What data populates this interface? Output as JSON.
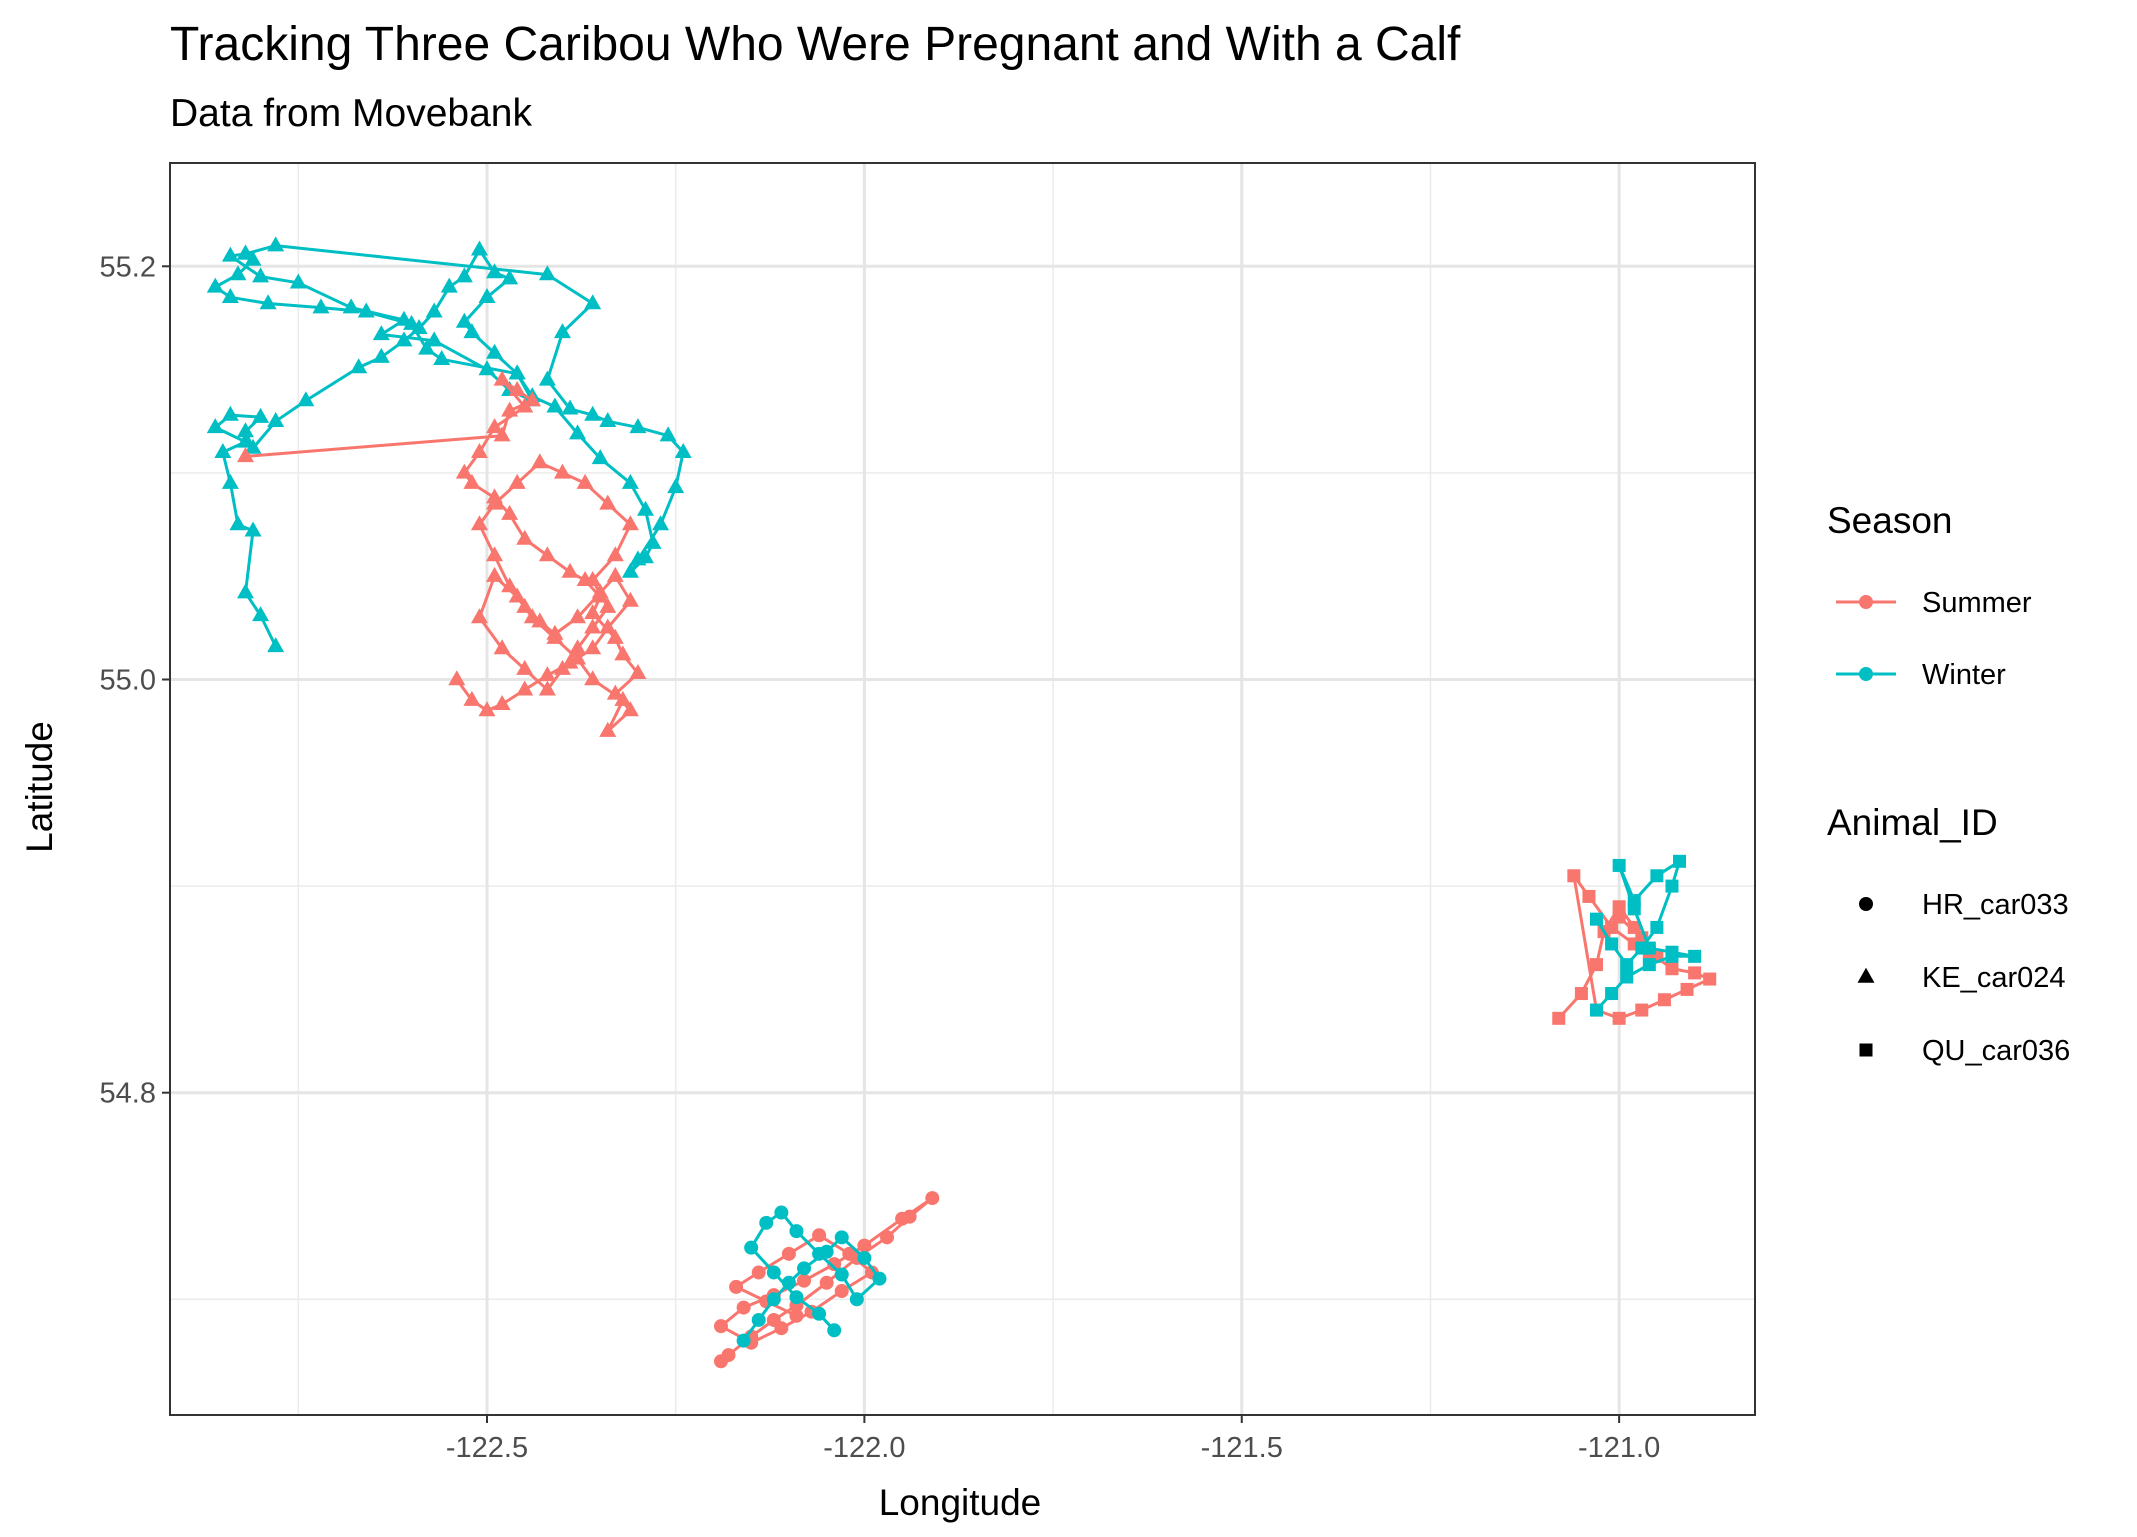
{
  "chart_data": {
    "type": "scatter",
    "title": "Tracking Three Caribou Who Were Pregnant and With a Calf",
    "subtitle": "Data from Movebank",
    "xlabel": "Longitude",
    "ylabel": "Latitude",
    "xlim": [
      -122.92,
      -120.82
    ],
    "ylim": [
      54.644,
      55.25
    ],
    "x_ticks": [
      {
        "value": -122.5,
        "label": "-122.5"
      },
      {
        "value": -122.0,
        "label": "-122.0"
      },
      {
        "value": -121.5,
        "label": "-121.5"
      },
      {
        "value": -121.0,
        "label": "-121.0"
      }
    ],
    "y_ticks": [
      {
        "value": 55.2,
        "label": "55.2"
      },
      {
        "value": 55.0,
        "label": "55.0"
      },
      {
        "value": 54.8,
        "label": "54.8"
      }
    ],
    "grid": true,
    "legend_position": "right",
    "colors": {
      "Summer": "#F8766D",
      "Winter": "#00BFC4"
    },
    "legend": {
      "season_title": "Season",
      "season_items": [
        {
          "label": "Summer",
          "color": "#F8766D"
        },
        {
          "label": "Winter",
          "color": "#00BFC4"
        }
      ],
      "animal_title": "Animal_ID",
      "animal_items": [
        {
          "label": "HR_car033",
          "shape": "circle"
        },
        {
          "label": "KE_car024",
          "shape": "triangle"
        },
        {
          "label": "QU_car036",
          "shape": "square"
        }
      ]
    },
    "series": [
      {
        "animal": "KE_car024",
        "season": "Winter",
        "shape": "triangle",
        "color": "#00BFC4",
        "x": [
          -122.78,
          -122.8,
          -122.82,
          -122.81,
          -122.83,
          -122.84,
          -122.85,
          -122.82,
          -122.86,
          -122.84,
          -122.8,
          -122.82,
          -122.81,
          -122.78,
          -122.74,
          -122.67,
          -122.64,
          -122.61,
          -122.59,
          -122.57,
          -122.55,
          -122.53,
          -122.51,
          -122.49,
          -122.47,
          -122.5,
          -122.53,
          -122.52,
          -122.49,
          -122.46,
          -122.44,
          -122.41,
          -122.38,
          -122.35,
          -122.31,
          -122.29,
          -122.28,
          -122.29,
          -122.31,
          -122.3,
          -122.27,
          -122.25,
          -122.24,
          -122.26,
          -122.3,
          -122.34,
          -122.36,
          -122.39,
          -122.42,
          -122.4,
          -122.36,
          -122.42,
          -122.78,
          -122.82,
          -122.84,
          -122.8,
          -122.75,
          -122.68,
          -122.61,
          -122.64,
          -122.57,
          -122.5,
          -122.47,
          -122.44,
          -122.46,
          -122.56,
          -122.58,
          -122.6,
          -122.66,
          -122.72,
          -122.79,
          -122.84,
          -122.86,
          -122.83,
          -122.81,
          -122.82
        ],
        "y": [
          55.016,
          55.031,
          55.042,
          55.072,
          55.075,
          55.095,
          55.11,
          55.115,
          55.122,
          55.128,
          55.127,
          55.12,
          55.112,
          55.125,
          55.135,
          55.151,
          55.156,
          55.164,
          55.17,
          55.178,
          55.19,
          55.195,
          55.208,
          55.197,
          55.194,
          55.185,
          55.173,
          55.168,
          55.158,
          55.148,
          55.137,
          55.132,
          55.119,
          55.107,
          55.095,
          55.082,
          55.066,
          55.059,
          55.052,
          55.058,
          55.075,
          55.093,
          55.11,
          55.118,
          55.122,
          55.125,
          55.128,
          55.131,
          55.145,
          55.168,
          55.182,
          55.196,
          55.21,
          55.206,
          55.205,
          55.195,
          55.192,
          55.18,
          55.174,
          55.167,
          55.164,
          55.15,
          55.14,
          55.135,
          55.148,
          55.155,
          55.16,
          55.172,
          55.178,
          55.18,
          55.182,
          55.185,
          55.19,
          55.196,
          55.203,
          55.206
        ]
      },
      {
        "animal": "KE_car024",
        "season": "Summer",
        "shape": "triangle",
        "color": "#F8766D",
        "x": [
          -122.82,
          -122.48,
          -122.47,
          -122.44,
          -122.46,
          -122.48,
          -122.45,
          -122.49,
          -122.51,
          -122.53,
          -122.52,
          -122.49,
          -122.47,
          -122.45,
          -122.42,
          -122.39,
          -122.37,
          -122.35,
          -122.36,
          -122.33,
          -122.32,
          -122.3,
          -122.33,
          -122.31,
          -122.34,
          -122.32,
          -122.36,
          -122.38,
          -122.41,
          -122.44,
          -122.46,
          -122.49,
          -122.51,
          -122.48,
          -122.45,
          -122.42,
          -122.4,
          -122.38,
          -122.36,
          -122.34,
          -122.36,
          -122.33,
          -122.31,
          -122.34,
          -122.37,
          -122.4,
          -122.43,
          -122.46,
          -122.49,
          -122.51,
          -122.49,
          -122.47,
          -122.45,
          -122.43,
          -122.41,
          -122.38,
          -122.35,
          -122.33,
          -122.31,
          -122.34,
          -122.36,
          -122.39,
          -122.42,
          -122.45,
          -122.48,
          -122.5,
          -122.52,
          -122.54
        ],
        "y": [
          55.108,
          55.118,
          55.13,
          55.135,
          55.14,
          55.145,
          55.132,
          55.122,
          55.11,
          55.1,
          55.095,
          55.088,
          55.08,
          55.068,
          55.06,
          55.052,
          55.048,
          55.04,
          55.032,
          55.02,
          55.012,
          55.003,
          54.993,
          54.985,
          54.975,
          54.99,
          55.0,
          55.01,
          55.02,
          55.03,
          55.04,
          55.05,
          55.03,
          55.015,
          55.005,
          54.995,
          55.005,
          55.015,
          55.025,
          55.035,
          55.048,
          55.06,
          55.075,
          55.085,
          55.095,
          55.1,
          55.105,
          55.095,
          55.085,
          55.075,
          55.06,
          55.045,
          55.035,
          55.028,
          55.022,
          55.03,
          55.042,
          55.05,
          55.038,
          55.025,
          55.015,
          55.008,
          55.002,
          54.995,
          54.988,
          54.985,
          54.99,
          55.0
        ]
      },
      {
        "animal": "HR_car033",
        "season": "Summer",
        "shape": "circle",
        "color": "#F8766D",
        "x": [
          -122.19,
          -122.18,
          -122.15,
          -122.12,
          -122.09,
          -122.05,
          -122.01,
          -121.97,
          -121.94,
          -121.91,
          -121.95,
          -122.0,
          -122.04,
          -122.08,
          -122.12,
          -122.16,
          -122.19,
          -122.15,
          -122.11,
          -122.07,
          -122.03,
          -121.99,
          -122.02,
          -122.06,
          -122.1,
          -122.14,
          -122.17,
          -122.13,
          -122.09
        ],
        "y": [
          54.67,
          54.673,
          54.682,
          54.69,
          54.697,
          54.708,
          54.72,
          54.73,
          54.74,
          54.749,
          54.739,
          54.726,
          54.717,
          54.709,
          54.702,
          54.696,
          54.687,
          54.679,
          54.686,
          54.694,
          54.704,
          54.713,
          54.722,
          54.731,
          54.722,
          54.713,
          54.706,
          54.699,
          54.692
        ]
      },
      {
        "animal": "HR_car033",
        "season": "Winter",
        "shape": "circle",
        "color": "#00BFC4",
        "x": [
          -122.16,
          -122.14,
          -122.12,
          -122.1,
          -122.08,
          -122.05,
          -122.03,
          -122.0,
          -121.98,
          -122.01,
          -122.03,
          -122.06,
          -122.09,
          -122.11,
          -122.13,
          -122.15,
          -122.12,
          -122.09,
          -122.06,
          -122.04
        ],
        "y": [
          54.68,
          54.69,
          54.7,
          54.708,
          54.715,
          54.723,
          54.73,
          54.72,
          54.71,
          54.7,
          54.712,
          54.722,
          54.733,
          54.742,
          54.737,
          54.725,
          54.713,
          54.701,
          54.693,
          54.685
        ]
      },
      {
        "animal": "QU_car036",
        "season": "Summer",
        "shape": "square",
        "color": "#F8766D",
        "x": [
          -121.08,
          -121.05,
          -121.03,
          -121.02,
          -121.0,
          -120.98,
          -120.96,
          -120.93,
          -120.9,
          -120.88,
          -120.91,
          -120.94,
          -120.97,
          -121.0,
          -121.03,
          -121.06,
          -121.04,
          -121.01,
          -120.98,
          -120.95,
          -120.97,
          -121.0
        ],
        "y": [
          54.836,
          54.848,
          54.862,
          54.878,
          54.89,
          54.88,
          54.868,
          54.86,
          54.858,
          54.855,
          54.85,
          54.845,
          54.84,
          54.836,
          54.84,
          54.905,
          54.895,
          54.88,
          54.872,
          54.866,
          54.875,
          54.885
        ]
      },
      {
        "animal": "QU_car036",
        "season": "Winter",
        "shape": "square",
        "color": "#00BFC4",
        "x": [
          -121.03,
          -121.01,
          -120.99,
          -120.97,
          -120.95,
          -120.93,
          -120.92,
          -120.95,
          -120.98,
          -121.0,
          -120.98,
          -120.96,
          -120.93,
          -120.9,
          -120.93,
          -120.96,
          -120.99,
          -121.01,
          -121.03
        ],
        "y": [
          54.884,
          54.872,
          54.862,
          54.87,
          54.88,
          54.9,
          54.912,
          54.905,
          54.893,
          54.91,
          54.889,
          54.87,
          54.868,
          54.866,
          54.866,
          54.862,
          54.856,
          54.848,
          54.84
        ]
      }
    ]
  }
}
